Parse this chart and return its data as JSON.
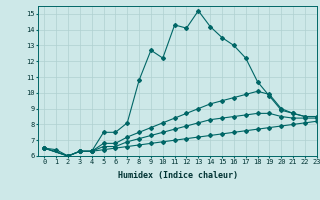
{
  "xlabel": "Humidex (Indice chaleur)",
  "background_color": "#cde8e8",
  "grid_color": "#b0d0d0",
  "line_color": "#006666",
  "xlim": [
    -0.5,
    23
  ],
  "ylim": [
    6,
    15.5
  ],
  "xticks": [
    0,
    1,
    2,
    3,
    4,
    5,
    6,
    7,
    8,
    9,
    10,
    11,
    12,
    13,
    14,
    15,
    16,
    17,
    18,
    19,
    20,
    21,
    22,
    23
  ],
  "yticks": [
    6,
    7,
    8,
    9,
    10,
    11,
    12,
    13,
    14,
    15
  ],
  "line1_x": [
    0,
    1,
    2,
    3,
    4,
    5,
    6,
    7,
    8,
    9,
    10,
    11,
    12,
    13,
    14,
    15,
    16,
    17,
    18,
    19,
    20,
    21,
    22,
    23
  ],
  "line1_y": [
    6.5,
    6.4,
    6.0,
    6.3,
    6.3,
    7.5,
    7.5,
    8.1,
    10.8,
    12.7,
    12.2,
    14.3,
    14.1,
    15.2,
    14.2,
    13.5,
    13.0,
    12.2,
    10.7,
    9.8,
    8.9,
    8.7,
    8.5,
    8.5
  ],
  "line2_x": [
    0,
    2,
    3,
    4,
    5,
    6,
    7,
    8,
    9,
    10,
    11,
    12,
    13,
    14,
    15,
    16,
    17,
    18,
    19,
    20,
    21,
    22,
    23
  ],
  "line2_y": [
    6.5,
    6.0,
    6.3,
    6.3,
    6.8,
    6.8,
    7.2,
    7.5,
    7.8,
    8.1,
    8.4,
    8.7,
    9.0,
    9.3,
    9.5,
    9.7,
    9.9,
    10.1,
    9.9,
    9.0,
    8.7,
    8.5,
    8.5
  ],
  "line3_x": [
    0,
    2,
    3,
    4,
    5,
    6,
    7,
    8,
    9,
    10,
    11,
    12,
    13,
    14,
    15,
    16,
    17,
    18,
    19,
    20,
    21,
    22,
    23
  ],
  "line3_y": [
    6.5,
    6.0,
    6.3,
    6.3,
    6.6,
    6.6,
    6.9,
    7.1,
    7.3,
    7.5,
    7.7,
    7.9,
    8.1,
    8.3,
    8.4,
    8.5,
    8.6,
    8.7,
    8.7,
    8.5,
    8.4,
    8.4,
    8.4
  ],
  "line4_x": [
    0,
    2,
    3,
    4,
    5,
    6,
    7,
    8,
    9,
    10,
    11,
    12,
    13,
    14,
    15,
    16,
    17,
    18,
    19,
    20,
    21,
    22,
    23
  ],
  "line4_y": [
    6.5,
    6.0,
    6.3,
    6.3,
    6.4,
    6.5,
    6.6,
    6.7,
    6.8,
    6.9,
    7.0,
    7.1,
    7.2,
    7.3,
    7.4,
    7.5,
    7.6,
    7.7,
    7.8,
    7.9,
    8.0,
    8.1,
    8.2
  ],
  "tick_fontsize": 5,
  "xlabel_fontsize": 6,
  "marker_size": 2
}
